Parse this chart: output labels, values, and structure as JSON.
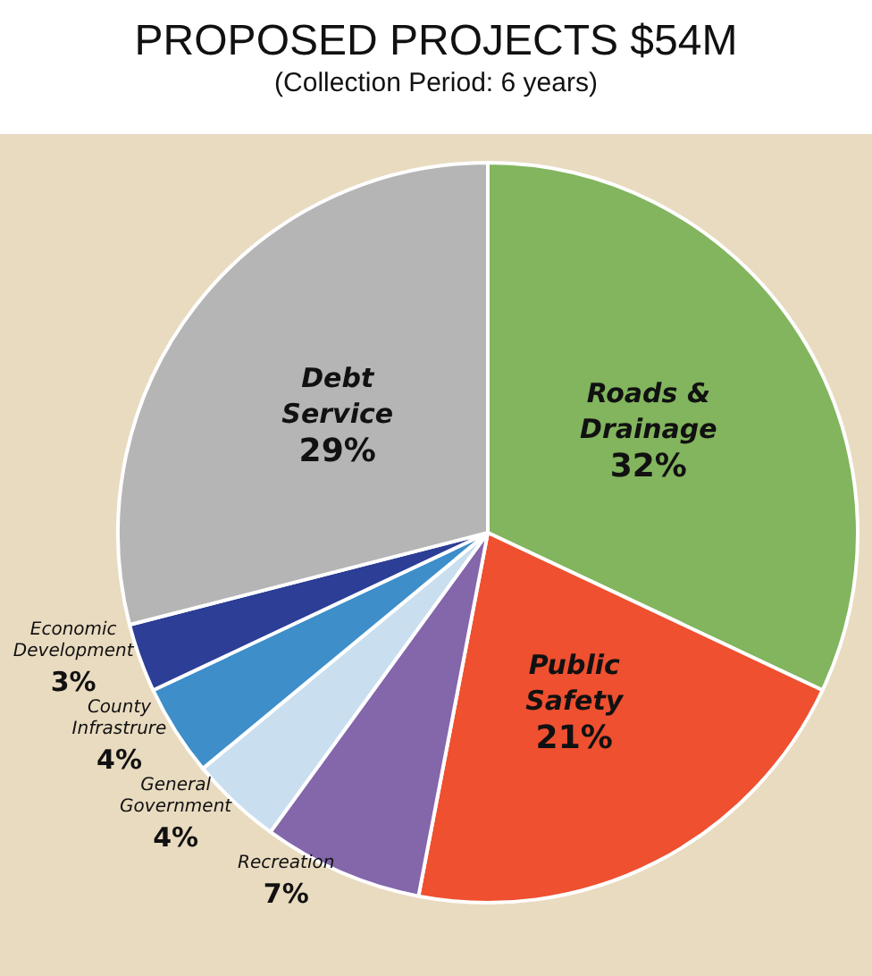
{
  "chart_data": {
    "type": "pie",
    "title": "PROPOSED PROJECTS $54M",
    "subtitle": "(Collection Period: 6 years)",
    "categories": [
      "Roads & Drainage",
      "Public Safety",
      "Recreation",
      "General Government",
      "County Infrastrure",
      "Economic Development",
      "Debt Service"
    ],
    "values": [
      32,
      21,
      7,
      4,
      4,
      3,
      29
    ],
    "value_labels": [
      "32%",
      "21%",
      "7%",
      "4%",
      "4%",
      "3%",
      "29%"
    ],
    "colors": [
      "#82b55e",
      "#ee5030",
      "#8466ab",
      "#c9dff0",
      "#3d8ec9",
      "#2c3e95",
      "#b5b5b5"
    ]
  }
}
